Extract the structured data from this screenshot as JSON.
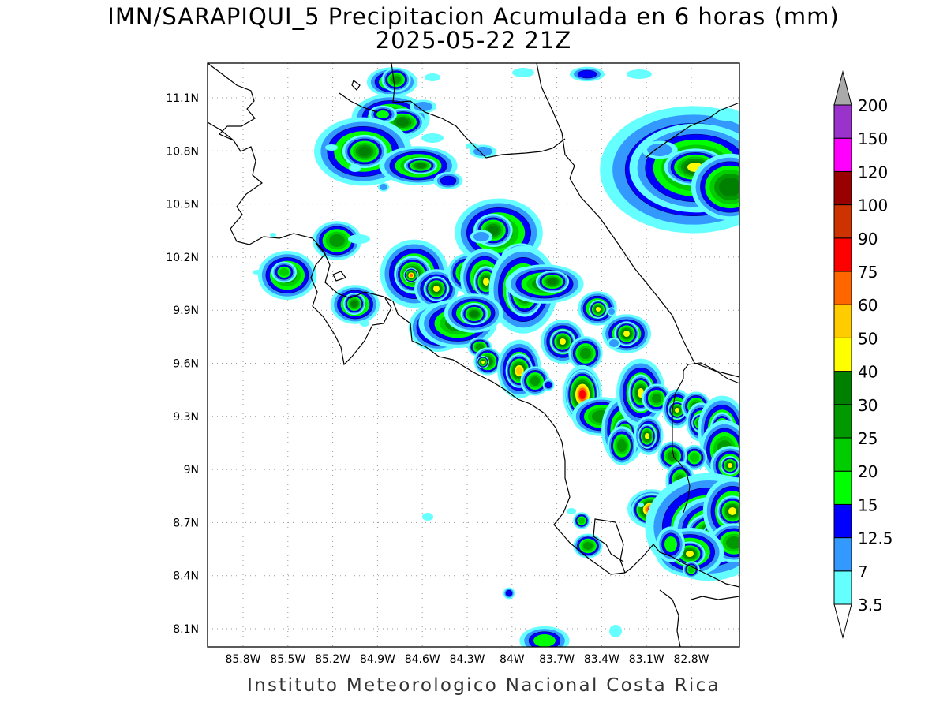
{
  "title_line1": "IMN/SARAPIQUI_5 Precipitacion Acumulada en 6 horas (mm)",
  "title_line2": "2025-05-22 21Z",
  "footer": "Instituto Meteorologico Nacional Costa Rica",
  "x_ticks": [
    "85.8W",
    "85.5W",
    "85.2W",
    "84.9W",
    "84.6W",
    "84.3W",
    "84W",
    "83.7W",
    "83.4W",
    "83.1W",
    "82.8W"
  ],
  "y_ticks": [
    "11.1N",
    "10.8N",
    "10.5N",
    "10.2N",
    "9.9N",
    "9.6N",
    "9.3N",
    "9N",
    "8.7N",
    "8.4N",
    "8.1N"
  ],
  "colorbar": {
    "levels": [
      {
        "label": "3.5",
        "color": "#66ffff"
      },
      {
        "label": "7",
        "color": "#3399ff"
      },
      {
        "label": "12.5",
        "color": "#0000ff"
      },
      {
        "label": "15",
        "color": "#00ff00"
      },
      {
        "label": "20",
        "color": "#00cc00"
      },
      {
        "label": "25",
        "color": "#009900"
      },
      {
        "label": "30",
        "color": "#008000"
      },
      {
        "label": "40",
        "color": "#ffff00"
      },
      {
        "label": "50",
        "color": "#ffcc00"
      },
      {
        "label": "60",
        "color": "#ff6600"
      },
      {
        "label": "75",
        "color": "#ff0000"
      },
      {
        "label": "90",
        "color": "#cc3300"
      },
      {
        "label": "100",
        "color": "#990000"
      },
      {
        "label": "120",
        "color": "#ff00ff"
      },
      {
        "label": "150",
        "color": "#9933cc"
      },
      {
        "label": "200",
        "color": "#f2f2f2"
      }
    ],
    "over_color": "#aaaaaa"
  }
}
